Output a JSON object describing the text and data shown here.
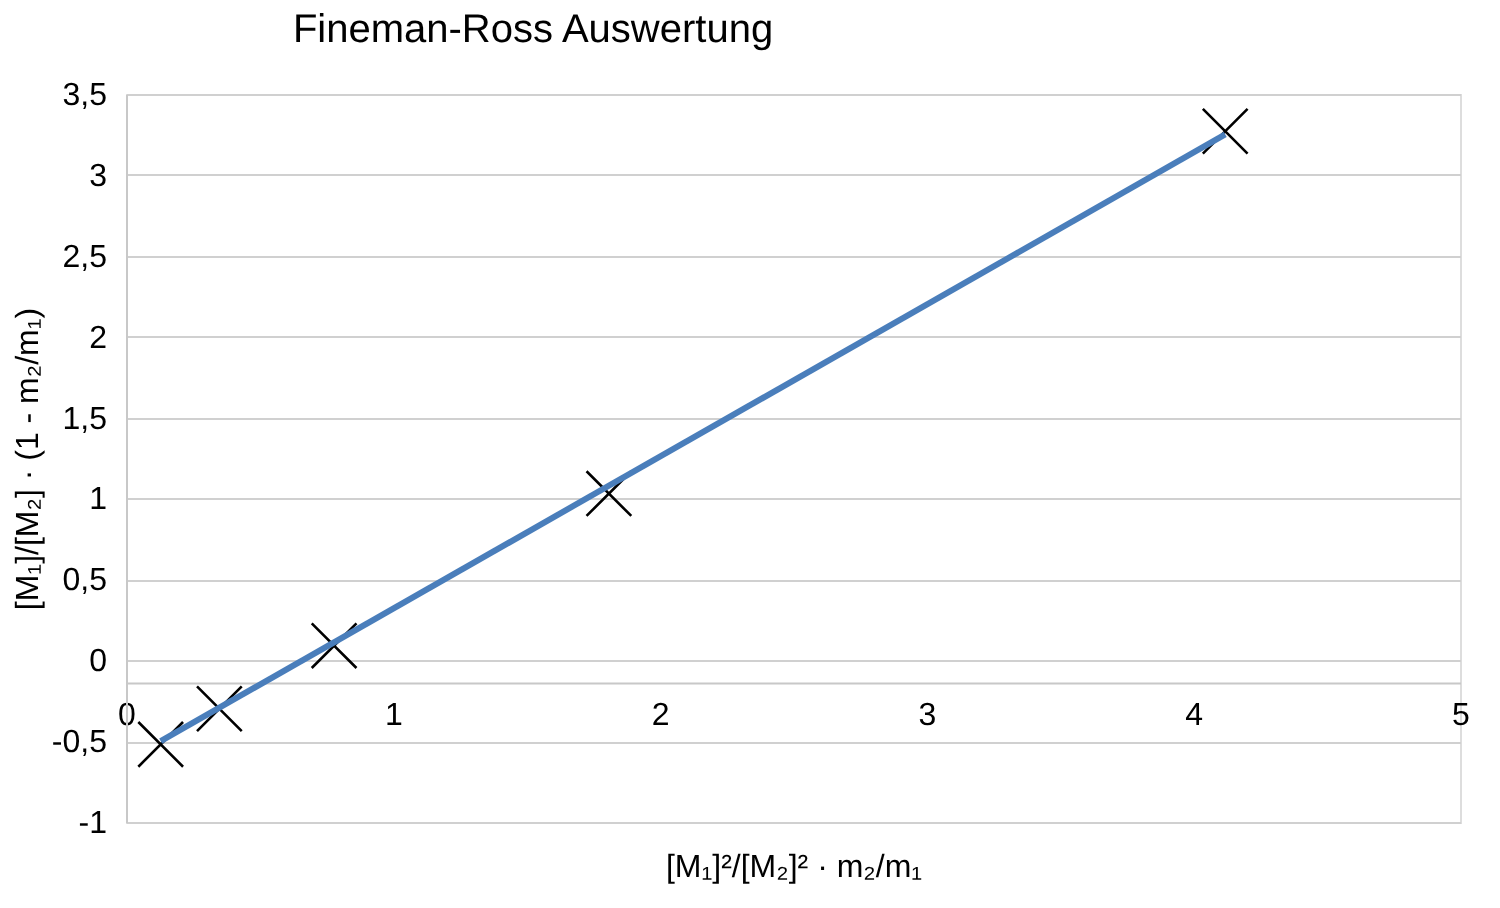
{
  "chart_data": {
    "type": "scatter",
    "title": "Fineman-Ross Auswertung",
    "xlabel": "[M₁]²/[M₂]² · m₂/m₁",
    "ylabel": "[M₁]/[M₂] · (1 - m₂/m₁)",
    "x": [
      0.13,
      0.35,
      0.78,
      1.81,
      4.12
    ],
    "series": [
      {
        "color": "#000000",
        "marker": "cross",
        "values": [
          -0.52,
          -0.3,
          0.09,
          1.03,
          3.27
        ]
      },
      {
        "type": "line",
        "color": "#4a7ebb",
        "line_style": "solid",
        "x": [
          0.13,
          4.12
        ],
        "values": [
          -0.5,
          3.25
        ]
      }
    ],
    "xlim": [
      0,
      5
    ],
    "xticks": [
      0,
      1,
      2,
      3,
      4,
      5
    ],
    "ylim": [
      -1,
      3.5
    ],
    "yticks": [
      {
        "value": -1,
        "label": "-1"
      },
      {
        "value": -0.5,
        "label": "-0,5"
      },
      0,
      {
        "value": 0.5,
        "label": "0,5"
      },
      1,
      {
        "value": 1.5,
        "label": "1,5"
      },
      2,
      {
        "value": 2.5,
        "label": "2,5"
      },
      3,
      {
        "value": 3.5,
        "label": "3,5"
      }
    ],
    "grid": "y"
  }
}
